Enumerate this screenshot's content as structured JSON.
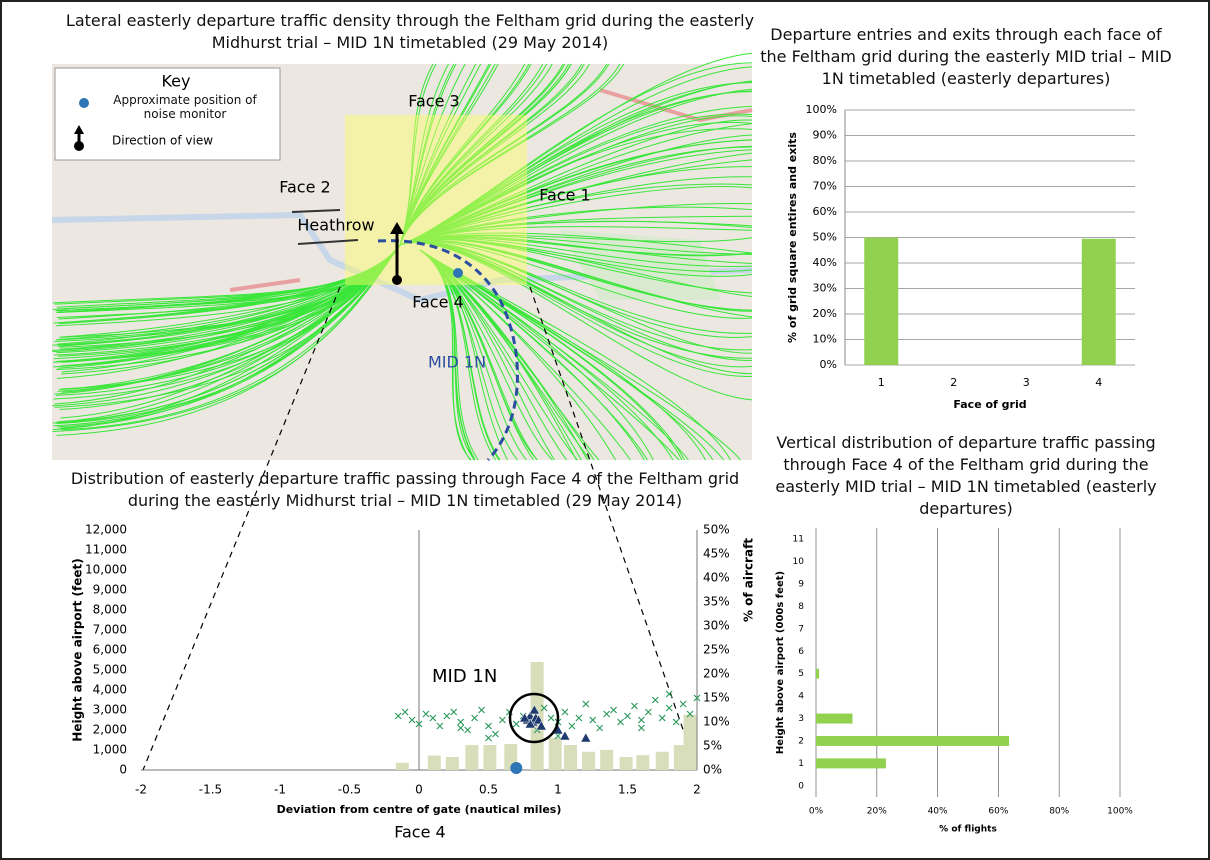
{
  "map": {
    "title": "Lateral easterly departure traffic density through the Feltham grid during the easterly Midhurst trial – MID 1N timetabled (29 May 2014)",
    "key_title": "Key",
    "key_monitor": "Approximate position of noise monitor",
    "key_view": "Direction of view",
    "face_labels": [
      "Face 1",
      "Face 2",
      "Face 3",
      "Face 4"
    ],
    "airport": "Heathrow",
    "route": "MID 1N"
  },
  "chart_data": [
    {
      "type": "bar",
      "title": "Departure entries and exits through each face of the Feltham grid during the easterly MID trial – MID 1N timetabled (easterly departures)",
      "x_label": "Face of grid",
      "y_label": "% of grid square entires and exits",
      "categories": [
        "1",
        "2",
        "3",
        "4"
      ],
      "values": [
        50,
        0,
        0,
        49.5
      ],
      "color": "#92d050",
      "ylim": [
        0,
        100
      ],
      "yticks": [
        {
          "value": 0,
          "label": "0%"
        },
        {
          "value": 10,
          "label": "10%"
        },
        {
          "value": 20,
          "label": "20%"
        },
        {
          "value": 30,
          "label": "30%"
        },
        {
          "value": 40,
          "label": "40%"
        },
        {
          "value": 50,
          "label": "50%"
        },
        {
          "value": 60,
          "label": "60%"
        },
        {
          "value": 70,
          "label": "70%"
        },
        {
          "value": 80,
          "label": "80%"
        },
        {
          "value": 90,
          "label": "90%"
        },
        {
          "value": 100,
          "label": "100%"
        }
      ],
      "grid": true
    },
    {
      "type": "barh",
      "title": "Vertical distribution of departure traffic passing through Face 4 of the Feltham grid during the easterly MID trial – MID 1N timetabled (easterly departures)",
      "x_label": "% of flights",
      "y_label": "Height above airport (000s feet)",
      "categories": [
        "0",
        "1",
        "2",
        "3",
        "4",
        "5",
        "6",
        "7",
        "8",
        "9",
        "10",
        "11"
      ],
      "values": [
        0,
        23,
        63.5,
        12,
        0,
        1,
        0,
        0,
        0,
        0,
        0,
        0
      ],
      "color": "#92d050",
      "xlim": [
        0,
        100
      ],
      "xticks": [
        {
          "value": 0,
          "label": "0%"
        },
        {
          "value": 20,
          "label": "20%"
        },
        {
          "value": 40,
          "label": "40%"
        },
        {
          "value": 60,
          "label": "60%"
        },
        {
          "value": 80,
          "label": "80%"
        },
        {
          "value": 100,
          "label": "100%"
        }
      ],
      "grid": true
    },
    {
      "type": "scatter",
      "title": "Distribution of easterly departure traffic passing through Face 4 of the Feltham grid during the easterly Midhurst trial – MID 1N timetabled (29 May 2014)",
      "x_label": "Deviation from centre of gate (nautical miles)",
      "y_label": "Height above airport (feet)",
      "y2_label": "% of aircraft",
      "caption": "Face 4",
      "annotations": [
        "MID 1N"
      ],
      "xlim": [
        -2,
        2
      ],
      "xticks": [
        -2,
        -1.5,
        -1,
        -0.5,
        0,
        0.5,
        1,
        1.5,
        2
      ],
      "ylim": [
        0,
        12000
      ],
      "yticks": [
        0,
        {
          "value": 1000,
          "label": "1,000"
        },
        {
          "value": 2000,
          "label": "2,000"
        },
        {
          "value": 3000,
          "label": "3,000"
        },
        {
          "value": 4000,
          "label": "4,000"
        },
        {
          "value": 5000,
          "label": "5,000"
        },
        {
          "value": 6000,
          "label": "6,000"
        },
        {
          "value": 7000,
          "label": "7,000"
        },
        {
          "value": 8000,
          "label": "8,000"
        },
        {
          "value": 9000,
          "label": "9,000"
        },
        {
          "value": 10000,
          "label": "10,000"
        },
        {
          "value": 11000,
          "label": "11,000"
        },
        {
          "value": 12000,
          "label": "12,000"
        }
      ],
      "y2lim": [
        0,
        50
      ],
      "y2ticks": [
        {
          "value": 0,
          "label": "0%"
        },
        {
          "value": 5,
          "label": "5%"
        },
        {
          "value": 10,
          "label": "10%"
        },
        {
          "value": 15,
          "label": "15%"
        },
        {
          "value": 20,
          "label": "20%"
        },
        {
          "value": 25,
          "label": "25%"
        },
        {
          "value": 30,
          "label": "30%"
        },
        {
          "value": 35,
          "label": "35%"
        },
        {
          "value": 40,
          "label": "40%"
        },
        {
          "value": 45,
          "label": "45%"
        },
        {
          "value": 50,
          "label": "50%"
        }
      ],
      "series": [
        {
          "marker": "bar",
          "axis": "y2",
          "color": "#d8deba",
          "x": [
            -0.12,
            0.11,
            0.24,
            0.38,
            0.51,
            0.66,
            0.85,
            0.98,
            1.09,
            1.22,
            1.35,
            1.49,
            1.61,
            1.75,
            1.88,
            1.95
          ],
          "values": [
            1.5,
            3,
            2.7,
            5.2,
            5.2,
            5.4,
            22.5,
            6.7,
            5.2,
            3.8,
            4.2,
            2.7,
            3.1,
            3.8,
            5.2,
            11.5
          ]
        },
        {
          "marker": "cross",
          "color": "#2e9a5e",
          "x": [
            -0.15,
            -0.1,
            -0.05,
            0.0,
            0.05,
            0.1,
            0.15,
            0.2,
            0.25,
            0.3,
            0.35,
            0.4,
            0.45,
            0.5,
            0.55,
            0.6,
            0.65,
            0.7,
            0.75,
            0.9,
            0.95,
            1.0,
            1.05,
            1.1,
            1.15,
            1.2,
            1.25,
            1.3,
            1.35,
            1.4,
            1.45,
            1.5,
            1.55,
            1.6,
            1.65,
            1.7,
            1.75,
            1.8,
            1.85,
            1.9,
            1.95,
            2.0,
            0.5,
            1.0,
            1.6,
            0.3,
            1.8,
            0.85
          ],
          "values": [
            2700,
            2900,
            2500,
            2300,
            2800,
            2600,
            2200,
            2700,
            2900,
            2400,
            2000,
            2600,
            3000,
            2200,
            1800,
            2500,
            2900,
            2300,
            2700,
            3100,
            2600,
            2400,
            2900,
            2200,
            2600,
            3300,
            2500,
            2100,
            2800,
            3000,
            2400,
            2700,
            3200,
            2500,
            2900,
            3500,
            2600,
            3100,
            2400,
            3300,
            2800,
            3600,
            1600,
            1700,
            2100,
            2100,
            3800,
            2000
          ]
        },
        {
          "marker": "triangle",
          "color": "#1f3a6e",
          "x": [
            0.78,
            0.8,
            0.82,
            0.84,
            0.86,
            0.8,
            0.83,
            0.88,
            0.76,
            1.0,
            1.05,
            1.2
          ],
          "values": [
            2500,
            2700,
            2400,
            2600,
            2500,
            2300,
            3000,
            2200,
            2600,
            2000,
            1700,
            1600
          ]
        },
        {
          "marker": "circle",
          "color": "#2e75b6",
          "x": [
            0.7
          ],
          "values": [
            0
          ]
        }
      ]
    }
  ]
}
